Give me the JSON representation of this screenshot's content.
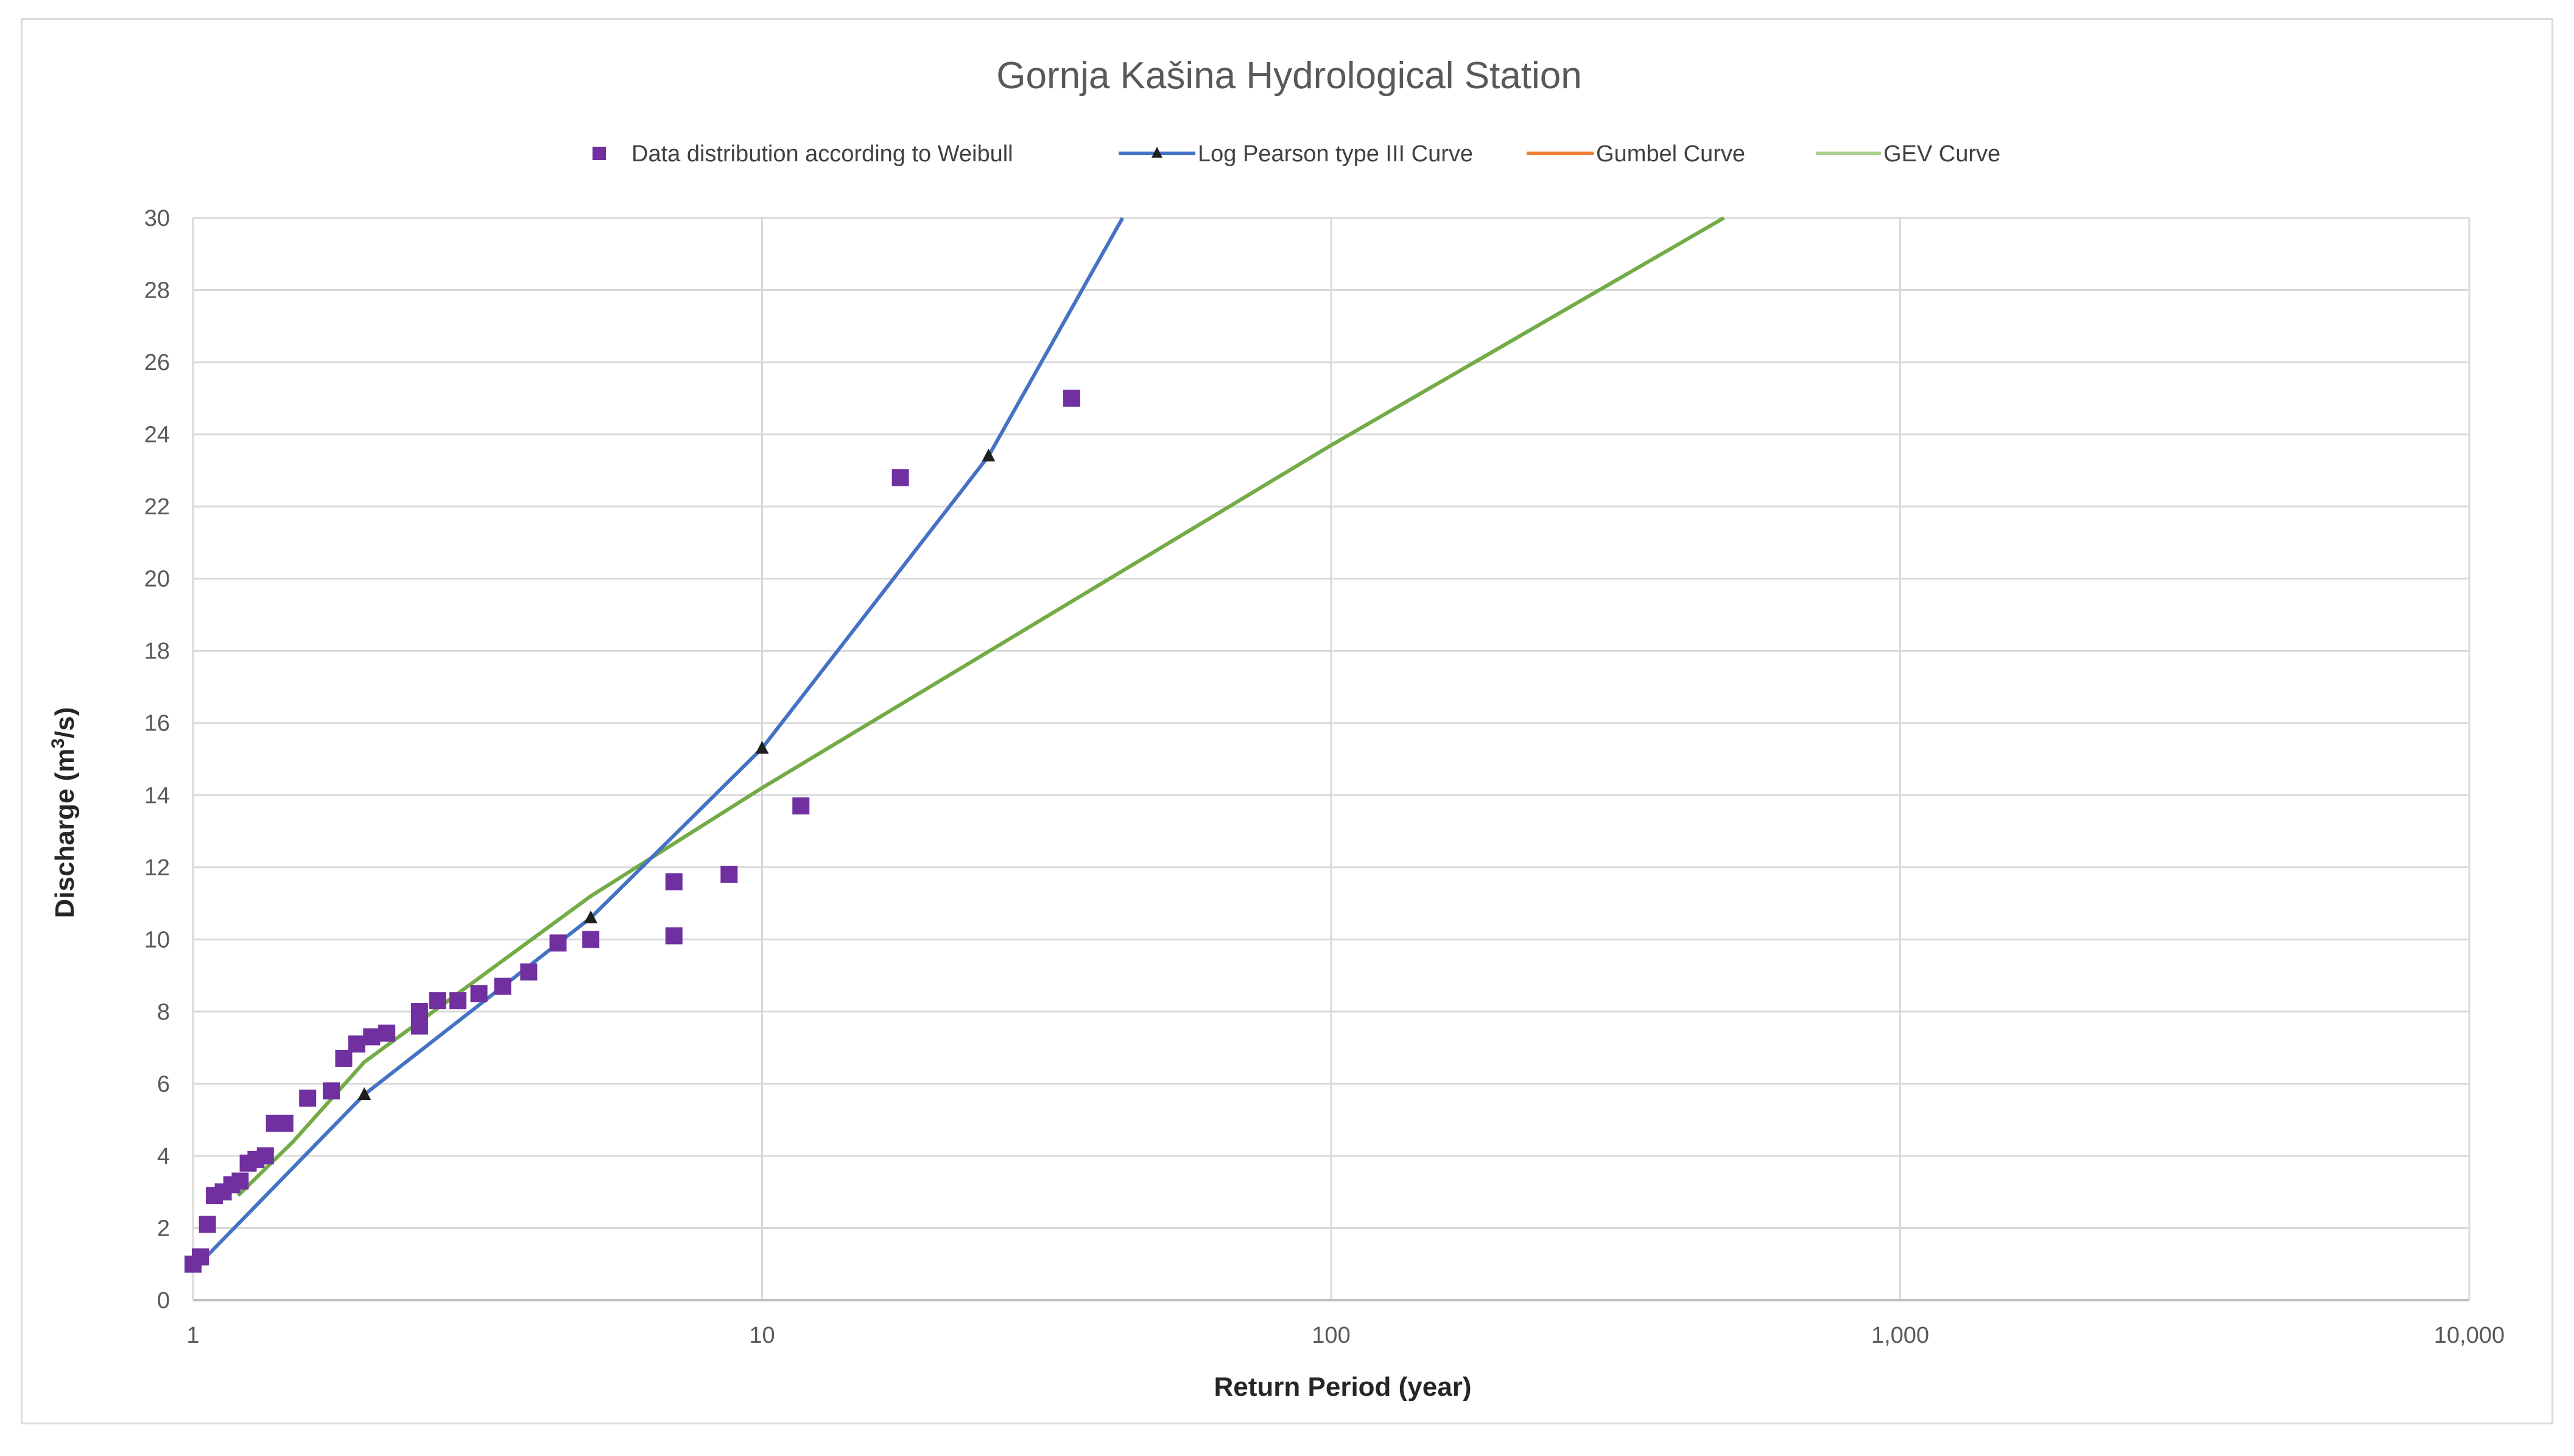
{
  "chart_data": {
    "type": "scatter",
    "title": "Gornja Kašina Hydrological Station",
    "xlabel": "Return Period (year)",
    "ylabel": "Discharge (m³/s)",
    "ylabel_parts": {
      "pre": "Discharge (m",
      "sup": "3",
      "post": "/s)"
    },
    "xscale": "log",
    "xlim": [
      1,
      10000
    ],
    "ylim": [
      0,
      30
    ],
    "grid": true,
    "legend_position": "top-center",
    "x_ticks": [
      {
        "value": 1,
        "label": "1"
      },
      {
        "value": 10,
        "label": "10"
      },
      {
        "value": 100,
        "label": "100"
      },
      {
        "value": 1000,
        "label": "1,000"
      },
      {
        "value": 10000,
        "label": "10,000"
      }
    ],
    "y_ticks": [
      {
        "value": 0,
        "label": "0"
      },
      {
        "value": 2,
        "label": "2"
      },
      {
        "value": 4,
        "label": "4"
      },
      {
        "value": 6,
        "label": "6"
      },
      {
        "value": 8,
        "label": "8"
      },
      {
        "value": 10,
        "label": "10"
      },
      {
        "value": 12,
        "label": "12"
      },
      {
        "value": 14,
        "label": "14"
      },
      {
        "value": 16,
        "label": "16"
      },
      {
        "value": 18,
        "label": "18"
      },
      {
        "value": 20,
        "label": "20"
      },
      {
        "value": 22,
        "label": "22"
      },
      {
        "value": 24,
        "label": "24"
      },
      {
        "value": 26,
        "label": "26"
      },
      {
        "value": 28,
        "label": "28"
      },
      {
        "value": 30,
        "label": "30"
      }
    ],
    "series": [
      {
        "name": "Data distribution according to Weibull",
        "kind": "marker-square",
        "color": "#7030a0",
        "points": [
          [
            1.0,
            1.0
          ],
          [
            1.03,
            1.2
          ],
          [
            1.06,
            2.1
          ],
          [
            1.09,
            2.9
          ],
          [
            1.13,
            3.0
          ],
          [
            1.17,
            3.2
          ],
          [
            1.21,
            3.3
          ],
          [
            1.25,
            3.8
          ],
          [
            1.29,
            3.9
          ],
          [
            1.34,
            4.0
          ],
          [
            1.39,
            4.9
          ],
          [
            1.45,
            4.9
          ],
          [
            1.59,
            5.6
          ],
          [
            1.75,
            5.8
          ],
          [
            1.84,
            6.7
          ],
          [
            1.94,
            7.1
          ],
          [
            2.06,
            7.3
          ],
          [
            2.19,
            7.4
          ],
          [
            2.5,
            7.6
          ],
          [
            2.5,
            8.0
          ],
          [
            2.69,
            8.3
          ],
          [
            2.92,
            8.3
          ],
          [
            3.18,
            8.5
          ],
          [
            3.5,
            8.7
          ],
          [
            3.89,
            9.1
          ],
          [
            4.38,
            9.9
          ],
          [
            5.0,
            10.0
          ],
          [
            7.0,
            10.1
          ],
          [
            7.0,
            11.6
          ],
          [
            8.75,
            11.8
          ],
          [
            11.7,
            13.7
          ],
          [
            17.5,
            22.8
          ],
          [
            35.0,
            25.0
          ]
        ]
      },
      {
        "name": "Log Pearson type III Curve",
        "kind": "line-triangle",
        "color": "#4472c4",
        "points": [
          [
            1.01,
            0.9
          ],
          [
            2,
            5.7
          ],
          [
            5,
            10.6
          ],
          [
            10,
            15.3
          ],
          [
            25,
            23.4
          ],
          [
            43,
            30
          ]
        ],
        "markers": [
          [
            2,
            5.7
          ],
          [
            5,
            10.6
          ],
          [
            10,
            15.3
          ],
          [
            25,
            23.4
          ]
        ]
      },
      {
        "name": "Gumbel Curve",
        "kind": "line",
        "color": "#ed7d31",
        "points": [
          [
            1.2,
            2.9
          ],
          [
            1.5,
            4.4
          ],
          [
            2,
            6.6
          ],
          [
            5,
            11.2
          ],
          [
            10,
            14.2
          ],
          [
            100,
            23.7
          ],
          [
            490,
            30
          ]
        ]
      },
      {
        "name": "GEV Curve",
        "kind": "line",
        "color": "#70ad47",
        "points": [
          [
            1.2,
            2.9
          ],
          [
            1.5,
            4.4
          ],
          [
            2,
            6.6
          ],
          [
            5,
            11.2
          ],
          [
            10,
            14.2
          ],
          [
            100,
            23.7
          ],
          [
            490,
            30
          ]
        ]
      }
    ]
  }
}
